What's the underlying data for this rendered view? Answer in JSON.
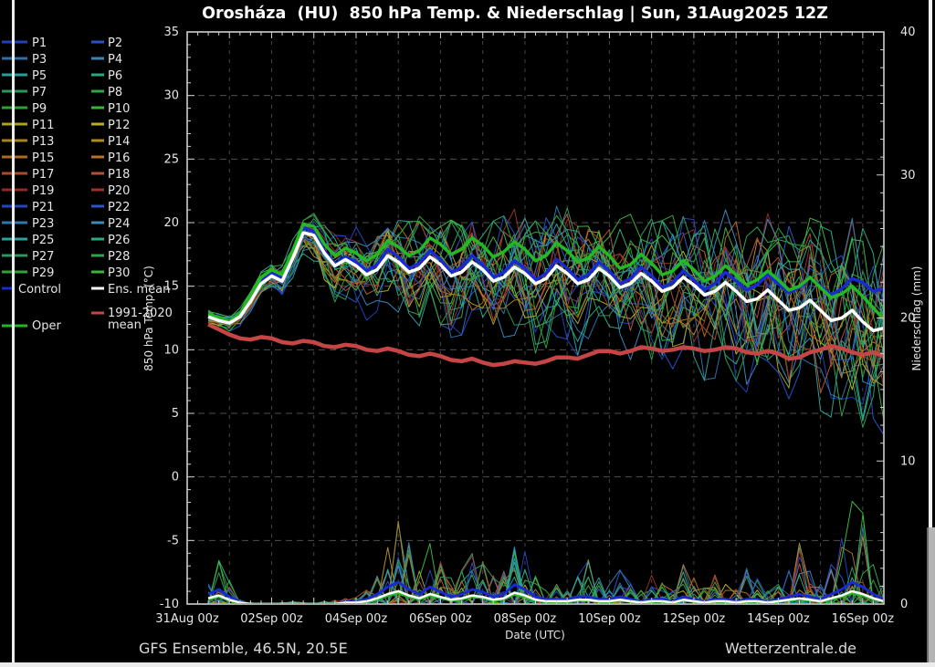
{
  "title": "Orosháza  (HU)  850 hPa Temp. & Niederschlag | Sun, 31Aug2025 12Z",
  "footer": {
    "left": "GFS Ensemble, 46.5N, 20.5E",
    "right": "Wetterzentrale.de"
  },
  "colors": {
    "background": "#000000",
    "frame": "#d0d0d0",
    "grid_h": "#4f4f4f",
    "grid_v": "#4a463e",
    "tick": "#d0d0d0",
    "text": "#e6e6e6"
  },
  "legend": {
    "members": [
      {
        "label": "P1",
        "color": "#2040b8"
      },
      {
        "label": "P2",
        "color": "#2b50c8"
      },
      {
        "label": "P3",
        "color": "#2f6fa8"
      },
      {
        "label": "P4",
        "color": "#3a85b8"
      },
      {
        "label": "P5",
        "color": "#2a9e96"
      },
      {
        "label": "P6",
        "color": "#2aa87e"
      },
      {
        "label": "P7",
        "color": "#2d9658"
      },
      {
        "label": "P8",
        "color": "#2fa34e"
      },
      {
        "label": "P9",
        "color": "#2f9e36"
      },
      {
        "label": "P10",
        "color": "#3bb23b"
      },
      {
        "label": "P11",
        "color": "#a8a21f"
      },
      {
        "label": "P12",
        "color": "#b8ae28"
      },
      {
        "label": "P13",
        "color": "#a8821c"
      },
      {
        "label": "P14",
        "color": "#b08b24"
      },
      {
        "label": "P15",
        "color": "#aa6a24"
      },
      {
        "label": "P16",
        "color": "#b5722a"
      },
      {
        "label": "P17",
        "color": "#a84a30"
      },
      {
        "label": "P18",
        "color": "#b05238"
      },
      {
        "label": "P19",
        "color": "#8f2d24"
      },
      {
        "label": "P20",
        "color": "#9a332a"
      },
      {
        "label": "P21",
        "color": "#2546bb"
      },
      {
        "label": "P22",
        "color": "#2c55c5"
      },
      {
        "label": "P23",
        "color": "#3178aa"
      },
      {
        "label": "P24",
        "color": "#3c8ab5"
      },
      {
        "label": "P25",
        "color": "#2aa29a"
      },
      {
        "label": "P26",
        "color": "#2ca882"
      },
      {
        "label": "P27",
        "color": "#2e985c"
      },
      {
        "label": "P28",
        "color": "#30a452"
      },
      {
        "label": "P29",
        "color": "#32a238"
      },
      {
        "label": "P30",
        "color": "#3db53d"
      }
    ],
    "control": {
      "label": "Control",
      "color": "#1a2ad0"
    },
    "ens_mean": {
      "label": "Ens. mean",
      "color": "#ffffff"
    },
    "climate": {
      "label_line1": "1991-2020",
      "label_line2": "mean",
      "color": "#c64545"
    },
    "oper": {
      "label": "Oper",
      "color": "#25b825"
    }
  },
  "chart_data": {
    "type": "line",
    "title": "Orosháza (HU) 850 hPa Temp. & Niederschlag | Sun, 31Aug2025 12Z",
    "x_axis": {
      "label": "Date (UTC)",
      "tick_labels": [
        "31Aug 00z",
        "02Sep 00z",
        "04Sep 00z",
        "06Sep 00z",
        "08Sep 00z",
        "10Sep 00z",
        "12Sep 00z",
        "14Sep 00z",
        "16Sep 00z"
      ],
      "tick_days": [
        0,
        2,
        4,
        6,
        8,
        10,
        12,
        14,
        16
      ],
      "range_days": [
        0,
        16.5
      ],
      "minor_tick_step_days": 0.25,
      "gridline_step_days": 1
    },
    "y_left": {
      "label": "850 hPa Temp. (°C)",
      "ticks": [
        35,
        30,
        25,
        20,
        15,
        10,
        5,
        0,
        -5,
        -10
      ],
      "range": [
        -10,
        35
      ],
      "minor_step": 1
    },
    "y_right": {
      "label": "Niederschlag (mm)",
      "ticks": [
        40,
        30,
        20,
        10,
        0
      ],
      "range": [
        0,
        40
      ],
      "minor_step": 1.25
    },
    "time_start_day": 0.5,
    "time_step_day": 0.25,
    "time_count": 65,
    "series": {
      "ens_mean": {
        "name": "Ens. mean",
        "unit": "°C",
        "values": [
          12.6,
          12.3,
          12.1,
          12.6,
          13.8,
          15.2,
          15.8,
          15.4,
          17.2,
          19.2,
          19.0,
          17.6,
          16.6,
          17.1,
          16.6,
          15.9,
          16.3,
          17.4,
          16.9,
          16.1,
          16.4,
          17.3,
          16.7,
          15.8,
          16.1,
          16.9,
          16.3,
          15.4,
          15.7,
          16.5,
          16.0,
          15.2,
          15.6,
          16.6,
          16.0,
          15.2,
          15.5,
          16.4,
          15.8,
          14.9,
          15.2,
          16.0,
          15.4,
          14.6,
          14.9,
          15.7,
          15.1,
          14.3,
          14.6,
          15.3,
          14.6,
          13.8,
          14.0,
          14.7,
          13.9,
          13.1,
          13.3,
          13.9,
          13.1,
          12.3,
          12.5,
          13.1,
          12.2,
          11.5,
          11.7
        ]
      },
      "control": {
        "name": "Control",
        "unit": "°C",
        "values": [
          12.7,
          12.4,
          12.1,
          12.7,
          14.0,
          15.5,
          16.1,
          15.6,
          17.5,
          19.6,
          19.3,
          17.8,
          16.7,
          17.3,
          16.9,
          16.2,
          16.7,
          17.9,
          17.3,
          16.4,
          16.8,
          17.8,
          17.1,
          16.1,
          16.5,
          17.4,
          16.7,
          15.7,
          16.1,
          17.0,
          16.4,
          15.5,
          16.0,
          17.1,
          16.4,
          15.5,
          15.9,
          16.9,
          16.2,
          15.2,
          15.6,
          16.5,
          15.8,
          14.9,
          15.3,
          16.2,
          15.5,
          14.7,
          15.2,
          16.1,
          15.4,
          14.7,
          15.1,
          15.9,
          15.2,
          14.5,
          14.9,
          15.7,
          15.0,
          14.3,
          14.8,
          15.6,
          15.3,
          14.6,
          14.8
        ]
      },
      "oper": {
        "name": "Oper",
        "unit": "°C",
        "values": [
          12.8,
          12.5,
          12.2,
          12.8,
          14.2,
          15.7,
          16.3,
          15.9,
          17.8,
          19.9,
          19.7,
          18.3,
          17.4,
          18.0,
          17.6,
          17.0,
          17.5,
          18.6,
          18.1,
          17.4,
          17.8,
          18.8,
          18.3,
          17.5,
          17.9,
          18.8,
          18.2,
          17.3,
          17.7,
          18.5,
          17.9,
          17.0,
          17.4,
          18.4,
          17.8,
          16.9,
          17.2,
          18.1,
          17.4,
          16.4,
          16.7,
          17.5,
          16.8,
          15.9,
          16.2,
          17.0,
          16.3,
          15.4,
          15.8,
          16.6,
          15.9,
          15.1,
          15.5,
          16.2,
          15.5,
          14.7,
          15.0,
          15.7,
          14.9,
          14.1,
          14.4,
          15.0,
          14.2,
          13.3,
          12.4
        ]
      },
      "climate_mean_1991_2020": {
        "name": "1991-2020 mean",
        "unit": "°C",
        "values": [
          12.0,
          11.6,
          11.2,
          10.9,
          10.8,
          11.0,
          10.9,
          10.6,
          10.5,
          10.7,
          10.6,
          10.3,
          10.2,
          10.4,
          10.3,
          10.0,
          9.9,
          10.1,
          9.9,
          9.6,
          9.5,
          9.7,
          9.5,
          9.2,
          9.1,
          9.3,
          9.0,
          8.8,
          8.9,
          9.1,
          9.0,
          8.9,
          9.1,
          9.4,
          9.4,
          9.3,
          9.6,
          9.9,
          9.9,
          9.7,
          9.9,
          10.2,
          10.1,
          9.9,
          10.0,
          10.2,
          10.1,
          9.9,
          10.0,
          10.2,
          10.1,
          9.8,
          9.7,
          9.9,
          9.7,
          9.3,
          9.4,
          9.8,
          10.0,
          10.3,
          10.1,
          9.8,
          9.6,
          9.8,
          9.5
        ]
      }
    },
    "ensemble": {
      "member_count": 30,
      "spread_above": [
        0.5,
        0.5,
        0.6,
        0.7,
        0.8,
        0.9,
        1.0,
        1.2,
        1.4,
        1.6,
        1.9,
        2.2,
        2.5,
        2.7,
        2.9,
        3.1,
        3.3,
        3.5,
        3.6,
        3.8,
        3.9,
        4.0,
        4.1,
        4.2,
        4.3,
        4.4,
        4.5,
        4.5,
        4.6,
        4.6,
        4.7,
        4.7,
        4.8,
        4.8,
        4.9,
        4.9,
        5.0,
        5.0,
        5.1,
        5.1,
        5.2,
        5.2,
        5.3,
        5.3,
        5.4,
        5.5,
        5.5,
        5.6,
        5.6,
        5.7,
        5.8,
        5.9,
        6.0,
        6.1,
        6.2,
        6.3,
        6.4,
        6.5,
        6.6,
        6.7,
        6.8,
        6.9,
        7.0,
        7.0,
        7.0
      ],
      "spread_below": [
        0.5,
        0.5,
        0.6,
        0.7,
        0.8,
        0.9,
        1.1,
        1.3,
        1.5,
        1.8,
        2.1,
        2.4,
        2.7,
        3.0,
        3.2,
        3.4,
        3.6,
        3.8,
        4.0,
        4.2,
        4.3,
        4.4,
        4.5,
        4.6,
        4.7,
        4.8,
        4.9,
        5.0,
        5.0,
        5.1,
        5.1,
        5.2,
        5.2,
        5.3,
        5.3,
        5.4,
        5.4,
        5.5,
        5.5,
        5.6,
        5.7,
        5.8,
        5.9,
        6.0,
        6.1,
        6.2,
        6.3,
        6.4,
        6.5,
        6.6,
        6.7,
        6.8,
        6.9,
        7.0,
        7.1,
        7.2,
        7.3,
        7.4,
        7.5,
        7.6,
        7.7,
        7.8,
        7.9,
        8.0,
        8.0
      ]
    },
    "precip": {
      "unit": "mm",
      "envelope_max": [
        1.5,
        3.3,
        1.8,
        0.3,
        0.1,
        0.0,
        0.0,
        0.1,
        0.2,
        0.1,
        0.0,
        0.2,
        0.3,
        0.4,
        0.5,
        1.0,
        2.0,
        4.3,
        6.3,
        4.5,
        2.5,
        4.6,
        3.0,
        2.0,
        2.5,
        3.8,
        3.0,
        2.0,
        2.5,
        4.2,
        4.0,
        2.0,
        1.0,
        1.5,
        1.0,
        2.0,
        3.2,
        2.0,
        1.5,
        2.5,
        1.5,
        1.0,
        2.2,
        1.5,
        1.0,
        3.0,
        2.0,
        1.2,
        2.2,
        1.5,
        1.0,
        2.5,
        1.8,
        1.0,
        1.5,
        2.5,
        4.3,
        2.5,
        1.5,
        3.0,
        5.0,
        7.8,
        6.8,
        3.0,
        1.5
      ],
      "ens_mean": [
        0.4,
        0.6,
        0.3,
        0.1,
        0.0,
        0.0,
        0.0,
        0.0,
        0.0,
        0.0,
        0.0,
        0.0,
        0.0,
        0.1,
        0.1,
        0.2,
        0.4,
        0.7,
        0.9,
        0.6,
        0.4,
        0.7,
        0.5,
        0.3,
        0.4,
        0.6,
        0.5,
        0.3,
        0.4,
        0.8,
        0.6,
        0.3,
        0.2,
        0.2,
        0.2,
        0.3,
        0.3,
        0.2,
        0.2,
        0.3,
        0.2,
        0.1,
        0.2,
        0.2,
        0.1,
        0.3,
        0.2,
        0.1,
        0.2,
        0.2,
        0.1,
        0.2,
        0.2,
        0.1,
        0.2,
        0.3,
        0.4,
        0.3,
        0.2,
        0.4,
        0.6,
        0.9,
        0.7,
        0.4,
        0.2
      ]
    }
  }
}
